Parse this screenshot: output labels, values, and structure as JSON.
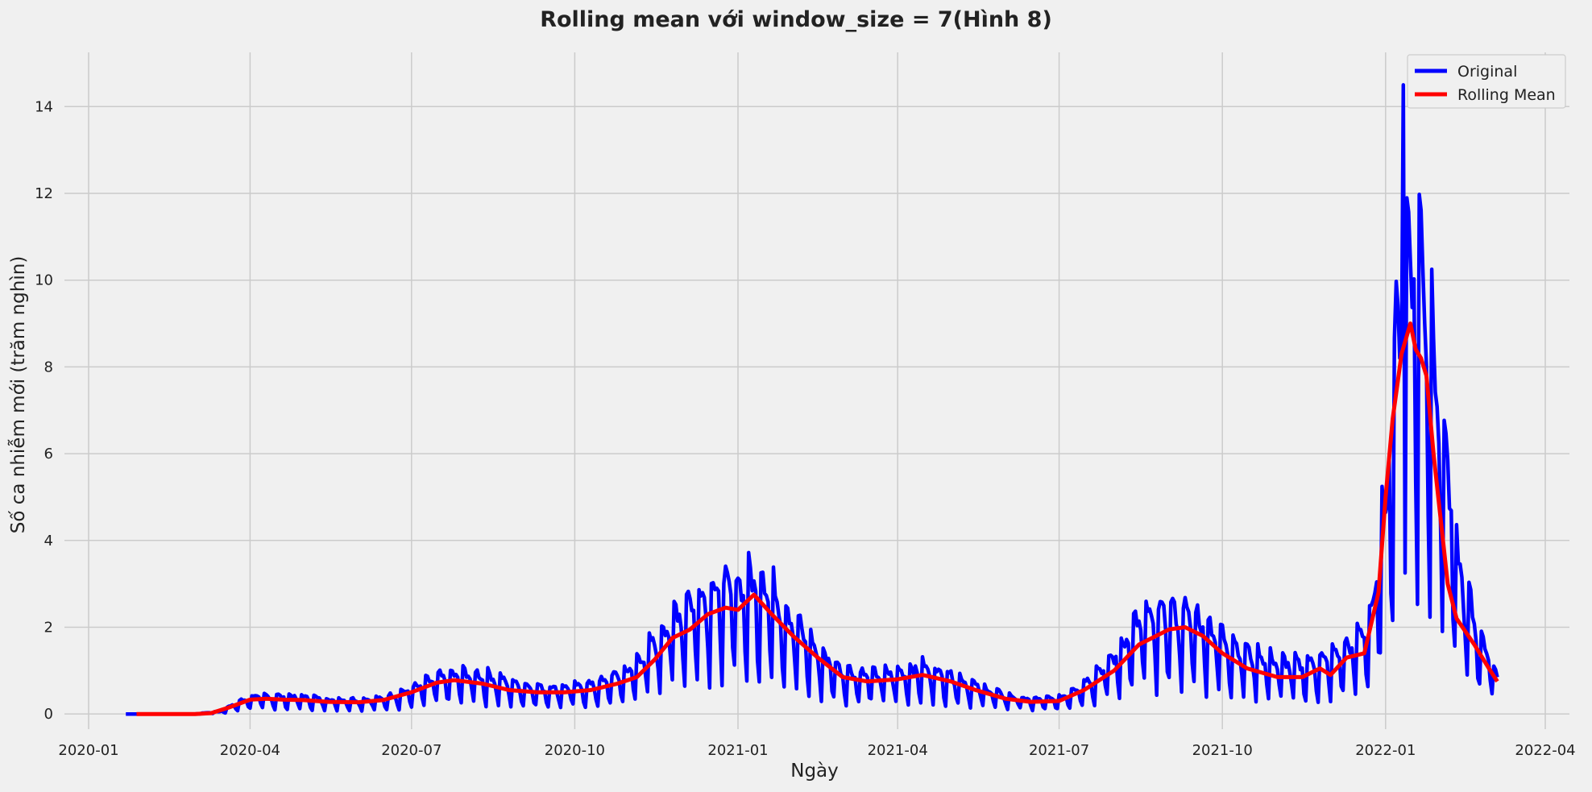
{
  "chart_data": {
    "type": "line",
    "title": "Rolling mean với window_size = 7(Hình 8)",
    "xlabel": "Ngày",
    "ylabel": "Số ca nhiễm mới (trăm nghìn)",
    "x_range": [
      "2020-01",
      "2022-04"
    ],
    "ylim": [
      -0.35,
      15.25
    ],
    "grid": true,
    "legend_position": "top-right",
    "x_ticks": [
      "2020-01",
      "2020-04",
      "2020-07",
      "2020-10",
      "2021-01",
      "2021-04",
      "2021-07",
      "2021-10",
      "2022-01",
      "2022-04"
    ],
    "y_ticks": [
      0,
      2,
      4,
      6,
      8,
      10,
      12,
      14
    ],
    "series": [
      {
        "name": "Original",
        "color": "#0000ff",
        "style": "daily values with strong weekly oscillation",
        "x": [
          "2020-01-22",
          "2020-02-15",
          "2020-03-01",
          "2020-03-15",
          "2020-04-01",
          "2020-04-15",
          "2020-05-01",
          "2020-05-15",
          "2020-06-01",
          "2020-06-15",
          "2020-07-01",
          "2020-07-15",
          "2020-08-01",
          "2020-08-15",
          "2020-09-01",
          "2020-09-15",
          "2020-10-01",
          "2020-10-15",
          "2020-11-01",
          "2020-11-15",
          "2020-12-01",
          "2020-12-15",
          "2021-01-01",
          "2021-01-15",
          "2021-02-01",
          "2021-02-15",
          "2021-03-01",
          "2021-03-15",
          "2021-04-01",
          "2021-04-15",
          "2021-05-01",
          "2021-05-15",
          "2021-06-01",
          "2021-06-15",
          "2021-07-01",
          "2021-07-15",
          "2021-08-01",
          "2021-08-15",
          "2021-09-01",
          "2021-09-15",
          "2021-10-01",
          "2021-10-15",
          "2021-11-01",
          "2021-11-15",
          "2021-12-01",
          "2021-12-15",
          "2021-12-25",
          "2022-01-01",
          "2022-01-05",
          "2022-01-10",
          "2022-01-15",
          "2022-01-20",
          "2022-01-25",
          "2022-02-01",
          "2022-02-10",
          "2022-02-20",
          "2022-03-01",
          "2022-03-05"
        ],
        "y": [
          0,
          0,
          0,
          0.05,
          0.33,
          0.34,
          0.33,
          0.28,
          0.27,
          0.3,
          0.48,
          0.7,
          0.78,
          0.72,
          0.55,
          0.5,
          0.52,
          0.6,
          0.85,
          1.4,
          2.1,
          2.4,
          2.5,
          2.6,
          1.8,
          1.2,
          0.85,
          0.75,
          0.8,
          0.9,
          0.75,
          0.55,
          0.35,
          0.28,
          0.3,
          0.6,
          1.1,
          1.8,
          2.0,
          1.9,
          1.5,
          1.2,
          1.0,
          0.95,
          1.1,
          1.4,
          2.0,
          4.2,
          6.3,
          8.2,
          9.1,
          8.8,
          8.0,
          6.0,
          3.0,
          1.8,
          1.1,
          0.7
        ],
        "peak": {
          "x": "2022-01-11",
          "y": 14.5
        }
      },
      {
        "name": "Rolling Mean",
        "color": "#ff0000",
        "style": "7-day rolling mean",
        "x": [
          "2020-01-28",
          "2020-02-15",
          "2020-03-01",
          "2020-03-10",
          "2020-03-20",
          "2020-04-01",
          "2020-04-10",
          "2020-04-20",
          "2020-05-01",
          "2020-05-15",
          "2020-06-01",
          "2020-06-15",
          "2020-07-01",
          "2020-07-15",
          "2020-07-25",
          "2020-08-10",
          "2020-08-25",
          "2020-09-10",
          "2020-09-25",
          "2020-10-10",
          "2020-10-25",
          "2020-11-05",
          "2020-11-15",
          "2020-11-25",
          "2020-12-05",
          "2020-12-15",
          "2020-12-25",
          "2021-01-01",
          "2021-01-10",
          "2021-01-20",
          "2021-02-01",
          "2021-02-15",
          "2021-03-01",
          "2021-03-15",
          "2021-04-01",
          "2021-04-15",
          "2021-05-01",
          "2021-05-15",
          "2021-06-01",
          "2021-06-15",
          "2021-07-01",
          "2021-07-15",
          "2021-08-01",
          "2021-08-15",
          "2021-09-01",
          "2021-09-10",
          "2021-09-20",
          "2021-10-01",
          "2021-10-15",
          "2021-11-01",
          "2021-11-15",
          "2021-11-25",
          "2021-12-01",
          "2021-12-10",
          "2021-12-20",
          "2021-12-28",
          "2022-01-01",
          "2022-01-05",
          "2022-01-10",
          "2022-01-15",
          "2022-01-18",
          "2022-01-21",
          "2022-01-24",
          "2022-01-28",
          "2022-02-01",
          "2022-02-05",
          "2022-02-10",
          "2022-02-20",
          "2022-03-01",
          "2022-03-05"
        ],
        "y": [
          0,
          0,
          0,
          0.02,
          0.15,
          0.33,
          0.35,
          0.33,
          0.32,
          0.28,
          0.27,
          0.32,
          0.5,
          0.72,
          0.78,
          0.7,
          0.55,
          0.5,
          0.5,
          0.55,
          0.7,
          0.85,
          1.25,
          1.75,
          1.95,
          2.3,
          2.45,
          2.4,
          2.75,
          2.3,
          1.8,
          1.3,
          0.85,
          0.75,
          0.8,
          0.9,
          0.75,
          0.55,
          0.35,
          0.28,
          0.3,
          0.55,
          1.0,
          1.6,
          1.95,
          2.0,
          1.8,
          1.4,
          1.05,
          0.85,
          0.85,
          1.05,
          0.9,
          1.3,
          1.4,
          2.8,
          5.0,
          6.8,
          8.3,
          9.0,
          8.4,
          8.2,
          7.8,
          6.0,
          4.5,
          3.0,
          2.2,
          1.6,
          1.0,
          0.75
        ]
      }
    ]
  }
}
